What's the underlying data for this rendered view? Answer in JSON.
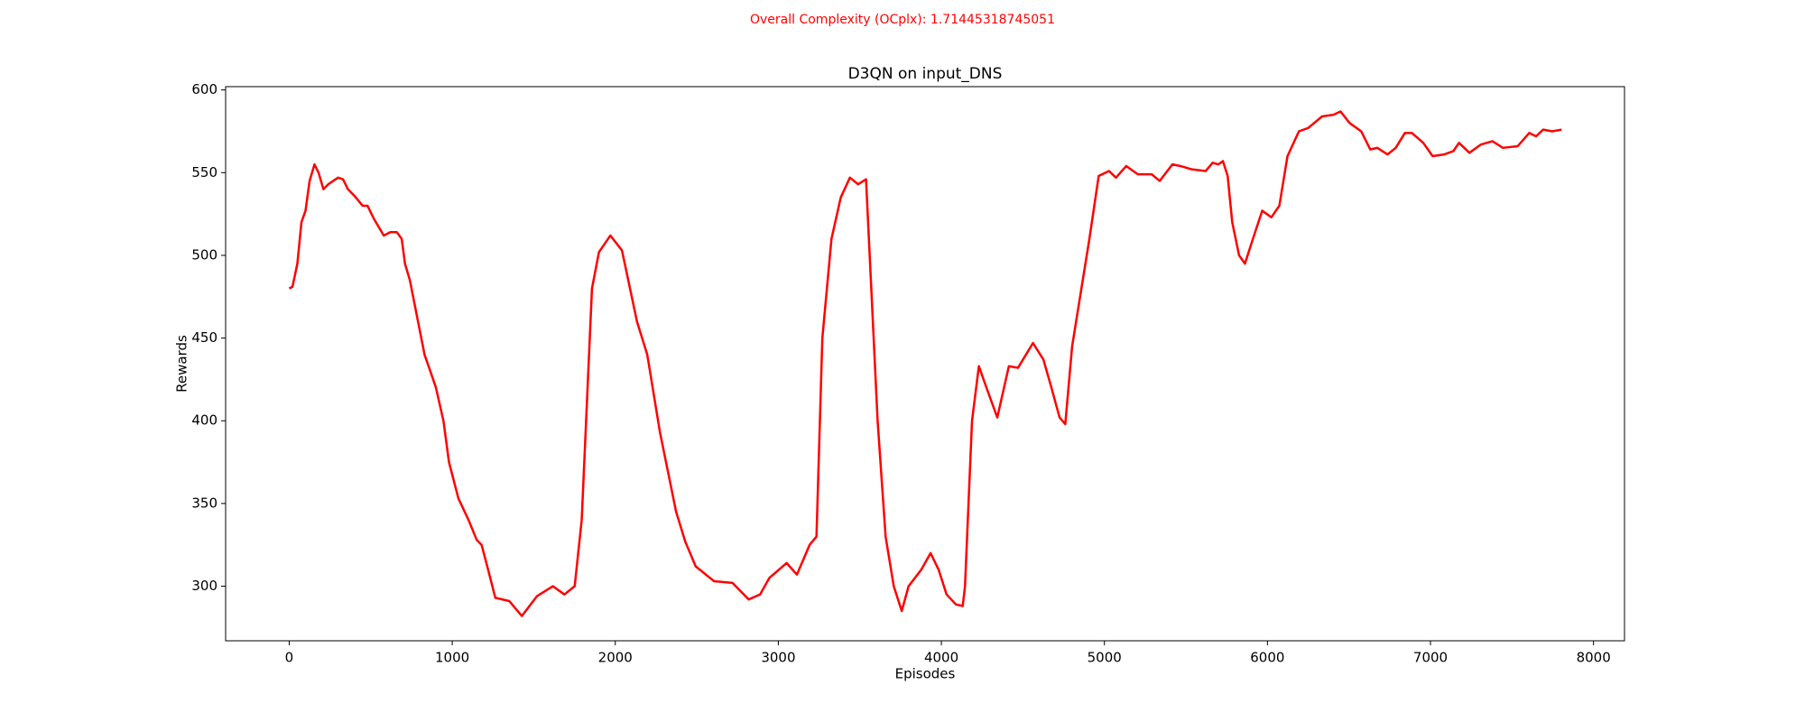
{
  "chart_data": {
    "type": "line",
    "suptitle": "Overall Complexity (OCplx): 1.71445318745051",
    "title": "D3QN on input_DNS",
    "xlabel": "Episodes",
    "ylabel": "Rewards",
    "xlim": [
      -390,
      8190
    ],
    "ylim": [
      267,
      602
    ],
    "xticks": [
      0,
      1000,
      2000,
      3000,
      4000,
      5000,
      6000,
      7000,
      8000
    ],
    "yticks": [
      300,
      350,
      400,
      450,
      500,
      550,
      600
    ],
    "grid": false,
    "series": [
      {
        "name": "D3QN",
        "color": "#ff0000",
        "x": [
          0,
          20,
          50,
          75,
          100,
          125,
          155,
          180,
          210,
          240,
          270,
          300,
          330,
          360,
          400,
          450,
          480,
          520,
          580,
          620,
          660,
          690,
          710,
          740,
          790,
          830,
          862,
          900,
          946,
          980,
          1038,
          1100,
          1150,
          1180,
          1220,
          1264,
          1350,
          1427,
          1520,
          1617,
          1688,
          1751,
          1794,
          1857,
          1900,
          1970,
          2041,
          2133,
          2196,
          2274,
          2373,
          2429,
          2493,
          2606,
          2719,
          2818,
          2888,
          2945,
          3051,
          3114,
          3192,
          3234,
          3270,
          3326,
          3383,
          3439,
          3489,
          3538,
          3609,
          3658,
          3708,
          3757,
          3799,
          3877,
          3934,
          3983,
          4032,
          4089,
          4131,
          4145,
          4188,
          4230,
          4273,
          4343,
          4414,
          4470,
          4562,
          4626,
          4675,
          4725,
          4760,
          4802,
          4859,
          4908,
          4965,
          5028,
          5071,
          5134,
          5205,
          5290,
          5339,
          5417,
          5466,
          5537,
          5621,
          5664,
          5699,
          5727,
          5756,
          5784,
          5826,
          5862,
          5911,
          5968,
          6024,
          6073,
          6123,
          6193,
          6250,
          6335,
          6405,
          6448,
          6504,
          6575,
          6631,
          6674,
          6737,
          6787,
          6843,
          6886,
          6956,
          7013,
          7083,
          7140,
          7175,
          7239,
          7309,
          7380,
          7444,
          7535,
          7606,
          7648,
          7691,
          7747,
          7804
        ],
        "values": [
          480,
          481,
          495,
          520,
          527,
          545,
          555,
          550,
          540,
          543,
          545,
          547,
          546,
          540,
          536,
          530,
          530,
          522,
          512,
          514,
          514,
          510,
          495,
          485,
          460,
          440,
          431,
          420,
          400,
          375,
          353,
          340,
          328,
          325,
          310,
          293,
          291,
          282,
          294,
          300,
          295,
          300,
          340,
          480,
          502,
          512,
          503,
          460,
          440,
          393,
          345,
          327,
          312,
          303,
          302,
          292,
          295,
          305,
          314,
          307,
          325,
          330,
          450,
          510,
          535,
          547,
          543,
          546,
          400,
          330,
          300,
          285,
          300,
          310,
          320,
          310,
          295,
          289,
          288,
          300,
          400,
          433,
          421,
          402,
          433,
          432,
          447,
          437,
          420,
          402,
          398,
          445,
          480,
          510,
          548,
          551,
          547,
          554,
          549,
          549,
          545,
          555,
          554,
          552,
          551,
          556,
          555,
          557,
          548,
          520,
          500,
          495,
          510,
          527,
          523,
          530,
          560,
          575,
          577,
          584,
          585,
          587,
          580,
          575,
          564,
          565,
          561,
          565,
          574,
          574,
          568,
          560,
          561,
          563,
          568,
          562,
          567,
          569,
          565,
          566,
          574,
          572,
          576,
          575,
          576
        ]
      }
    ]
  }
}
